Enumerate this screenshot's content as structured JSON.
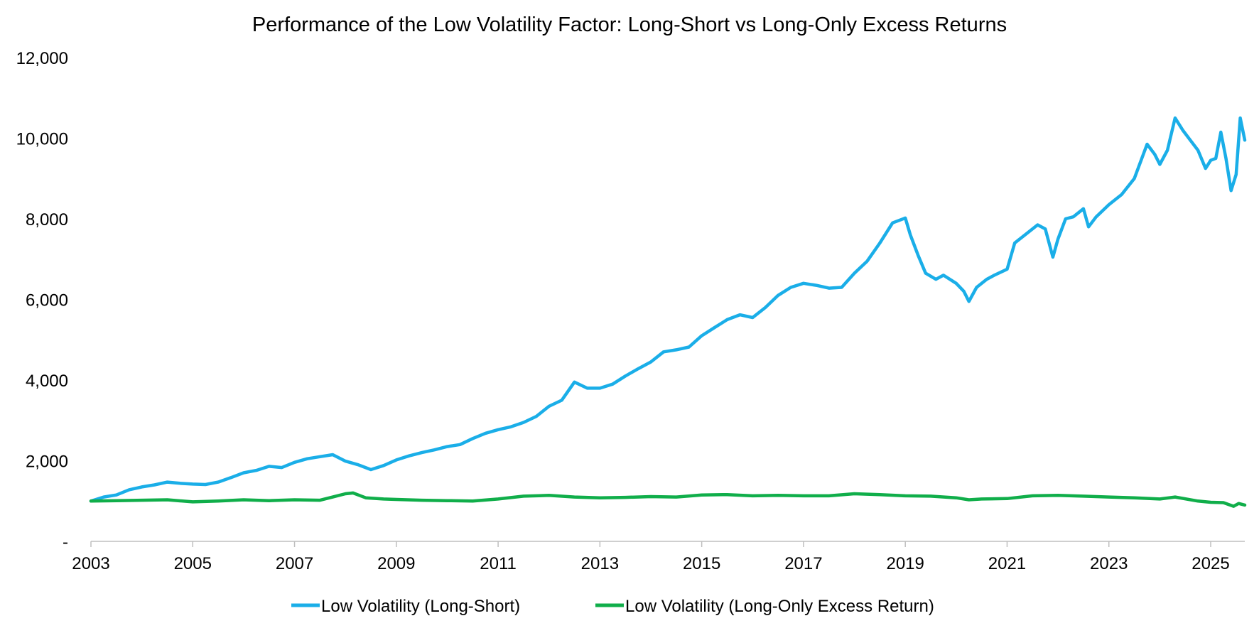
{
  "chart_data": {
    "type": "line",
    "title": "Performance of the Low Volatility Factor: Long-Short vs Long-Only Excess Returns",
    "xlabel": "",
    "ylabel": "",
    "x_ticks": [
      "2003",
      "2005",
      "2007",
      "2009",
      "2011",
      "2013",
      "2015",
      "2017",
      "2019",
      "2021",
      "2023",
      "2025"
    ],
    "y_ticks": [
      {
        "value": 0,
        "label": "-"
      },
      {
        "value": 2000,
        "label": "2,000"
      },
      {
        "value": 4000,
        "label": "4,000"
      },
      {
        "value": 6000,
        "label": "6,000"
      },
      {
        "value": 8000,
        "label": "8,000"
      },
      {
        "value": 10000,
        "label": "10,000"
      },
      {
        "value": 12000,
        "label": "12,000"
      }
    ],
    "xlim": [
      2003.0,
      2025.67
    ],
    "ylim": [
      0,
      12000
    ],
    "grid": false,
    "legend_position": "bottom-center",
    "series": [
      {
        "name": "Low Volatility (Long-Short)",
        "color": "#1AAEE8",
        "points": [
          [
            2003.0,
            1000
          ],
          [
            2003.25,
            1100
          ],
          [
            2003.5,
            1150
          ],
          [
            2003.75,
            1280
          ],
          [
            2004.0,
            1350
          ],
          [
            2004.25,
            1400
          ],
          [
            2004.5,
            1470
          ],
          [
            2004.75,
            1440
          ],
          [
            2005.0,
            1420
          ],
          [
            2005.25,
            1410
          ],
          [
            2005.5,
            1470
          ],
          [
            2005.75,
            1580
          ],
          [
            2006.0,
            1700
          ],
          [
            2006.25,
            1760
          ],
          [
            2006.5,
            1860
          ],
          [
            2006.75,
            1830
          ],
          [
            2007.0,
            1960
          ],
          [
            2007.25,
            2050
          ],
          [
            2007.5,
            2100
          ],
          [
            2007.75,
            2150
          ],
          [
            2008.0,
            1990
          ],
          [
            2008.25,
            1900
          ],
          [
            2008.5,
            1780
          ],
          [
            2008.75,
            1880
          ],
          [
            2009.0,
            2020
          ],
          [
            2009.25,
            2120
          ],
          [
            2009.5,
            2200
          ],
          [
            2009.75,
            2270
          ],
          [
            2010.0,
            2350
          ],
          [
            2010.25,
            2400
          ],
          [
            2010.5,
            2550
          ],
          [
            2010.75,
            2680
          ],
          [
            2011.0,
            2770
          ],
          [
            2011.25,
            2840
          ],
          [
            2011.5,
            2950
          ],
          [
            2011.75,
            3100
          ],
          [
            2012.0,
            3350
          ],
          [
            2012.25,
            3500
          ],
          [
            2012.5,
            3950
          ],
          [
            2012.75,
            3800
          ],
          [
            2013.0,
            3800
          ],
          [
            2013.25,
            3900
          ],
          [
            2013.5,
            4100
          ],
          [
            2013.75,
            4280
          ],
          [
            2014.0,
            4450
          ],
          [
            2014.25,
            4700
          ],
          [
            2014.5,
            4750
          ],
          [
            2014.75,
            4820
          ],
          [
            2015.0,
            5100
          ],
          [
            2015.25,
            5300
          ],
          [
            2015.5,
            5500
          ],
          [
            2015.75,
            5620
          ],
          [
            2016.0,
            5550
          ],
          [
            2016.25,
            5800
          ],
          [
            2016.5,
            6100
          ],
          [
            2016.75,
            6300
          ],
          [
            2017.0,
            6400
          ],
          [
            2017.25,
            6350
          ],
          [
            2017.5,
            6280
          ],
          [
            2017.75,
            6300
          ],
          [
            2018.0,
            6650
          ],
          [
            2018.25,
            6950
          ],
          [
            2018.5,
            7400
          ],
          [
            2018.75,
            7900
          ],
          [
            2019.0,
            8020
          ],
          [
            2019.1,
            7600
          ],
          [
            2019.25,
            7100
          ],
          [
            2019.4,
            6650
          ],
          [
            2019.6,
            6500
          ],
          [
            2019.75,
            6600
          ],
          [
            2020.0,
            6400
          ],
          [
            2020.15,
            6200
          ],
          [
            2020.25,
            5950
          ],
          [
            2020.4,
            6300
          ],
          [
            2020.6,
            6500
          ],
          [
            2020.75,
            6600
          ],
          [
            2021.0,
            6750
          ],
          [
            2021.15,
            7400
          ],
          [
            2021.4,
            7650
          ],
          [
            2021.6,
            7850
          ],
          [
            2021.75,
            7750
          ],
          [
            2021.9,
            7050
          ],
          [
            2022.0,
            7500
          ],
          [
            2022.15,
            8000
          ],
          [
            2022.3,
            8050
          ],
          [
            2022.5,
            8250
          ],
          [
            2022.6,
            7800
          ],
          [
            2022.75,
            8050
          ],
          [
            2023.0,
            8350
          ],
          [
            2023.25,
            8600
          ],
          [
            2023.5,
            9000
          ],
          [
            2023.75,
            9850
          ],
          [
            2023.9,
            9600
          ],
          [
            2024.0,
            9350
          ],
          [
            2024.15,
            9700
          ],
          [
            2024.3,
            10500
          ],
          [
            2024.45,
            10200
          ],
          [
            2024.6,
            9950
          ],
          [
            2024.75,
            9700
          ],
          [
            2024.9,
            9250
          ],
          [
            2025.0,
            9450
          ],
          [
            2025.1,
            9500
          ],
          [
            2025.2,
            10150
          ],
          [
            2025.3,
            9500
          ],
          [
            2025.4,
            8700
          ],
          [
            2025.5,
            9100
          ],
          [
            2025.58,
            10500
          ],
          [
            2025.67,
            9950
          ]
        ]
      },
      {
        "name": "Low Volatility (Long-Only Excess Return)",
        "color": "#10AE4A",
        "points": [
          [
            2003.0,
            1000
          ],
          [
            2003.5,
            1010
          ],
          [
            2004.0,
            1020
          ],
          [
            2004.5,
            1030
          ],
          [
            2005.0,
            980
          ],
          [
            2005.5,
            1000
          ],
          [
            2006.0,
            1030
          ],
          [
            2006.5,
            1010
          ],
          [
            2007.0,
            1030
          ],
          [
            2007.5,
            1020
          ],
          [
            2007.75,
            1100
          ],
          [
            2008.0,
            1180
          ],
          [
            2008.15,
            1200
          ],
          [
            2008.4,
            1080
          ],
          [
            2008.75,
            1050
          ],
          [
            2009.0,
            1040
          ],
          [
            2009.5,
            1020
          ],
          [
            2010.0,
            1010
          ],
          [
            2010.5,
            1000
          ],
          [
            2011.0,
            1050
          ],
          [
            2011.5,
            1120
          ],
          [
            2012.0,
            1140
          ],
          [
            2012.5,
            1100
          ],
          [
            2013.0,
            1080
          ],
          [
            2013.5,
            1090
          ],
          [
            2014.0,
            1110
          ],
          [
            2014.5,
            1100
          ],
          [
            2015.0,
            1150
          ],
          [
            2015.5,
            1160
          ],
          [
            2016.0,
            1130
          ],
          [
            2016.5,
            1140
          ],
          [
            2017.0,
            1130
          ],
          [
            2017.5,
            1130
          ],
          [
            2018.0,
            1180
          ],
          [
            2018.5,
            1160
          ],
          [
            2019.0,
            1130
          ],
          [
            2019.5,
            1120
          ],
          [
            2020.0,
            1080
          ],
          [
            2020.25,
            1030
          ],
          [
            2020.5,
            1050
          ],
          [
            2021.0,
            1060
          ],
          [
            2021.5,
            1130
          ],
          [
            2022.0,
            1140
          ],
          [
            2022.5,
            1120
          ],
          [
            2023.0,
            1100
          ],
          [
            2023.5,
            1080
          ],
          [
            2024.0,
            1050
          ],
          [
            2024.3,
            1100
          ],
          [
            2024.75,
            1000
          ],
          [
            2025.0,
            970
          ],
          [
            2025.25,
            960
          ],
          [
            2025.45,
            870
          ],
          [
            2025.55,
            940
          ],
          [
            2025.67,
            900
          ]
        ]
      }
    ]
  }
}
